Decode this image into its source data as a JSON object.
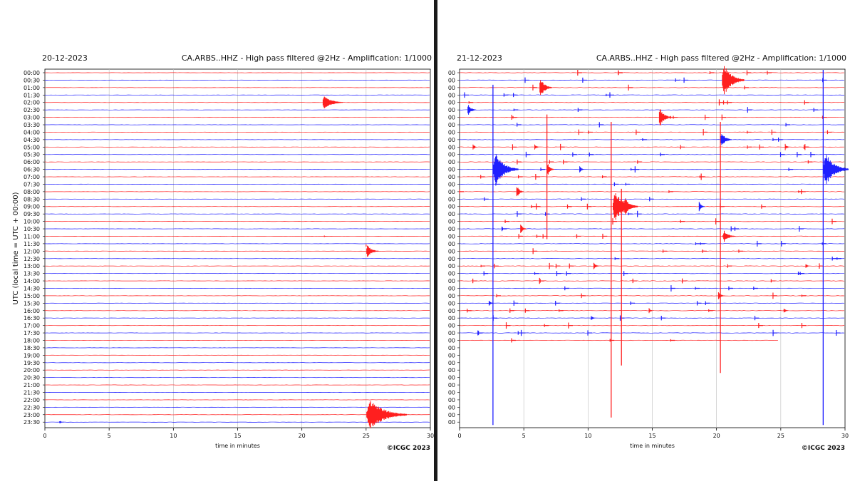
{
  "divider_color": "#1a1a1a",
  "trace_colors": {
    "red": "#ff1f1f",
    "blue": "#1f1fff"
  },
  "chart_data": [
    {
      "type": "helicorder",
      "date": "20-12-2023",
      "title": "CA.ARBS..HHZ - High pass filtered @2Hz - Amplification: 1/1000",
      "xlabel": "time in minutes",
      "ylabel": "UTC (local time = UTC + 00:00)",
      "xlim": [
        0,
        30
      ],
      "x_ticks": [
        "0",
        "5",
        "10",
        "15",
        "20",
        "25",
        "30"
      ],
      "row_labels": [
        "00:00",
        "00:30",
        "01:00",
        "01:30",
        "02:00",
        "02:30",
        "03:00",
        "03:30",
        "04:00",
        "04:30",
        "05:00",
        "05:30",
        "06:00",
        "06:30",
        "07:00",
        "07:30",
        "08:00",
        "08:30",
        "09:00",
        "09:30",
        "10:00",
        "10:30",
        "11:00",
        "11:30",
        "12:00",
        "12:30",
        "13:00",
        "13:30",
        "14:00",
        "14:30",
        "15:00",
        "15:30",
        "16:00",
        "16:30",
        "17:00",
        "17:30",
        "18:00",
        "18:30",
        "19:00",
        "19:30",
        "20:00",
        "20:30",
        "21:00",
        "21:30",
        "22:00",
        "22:30",
        "23:00",
        "23:30"
      ],
      "credit": "©ICGC 2023",
      "events": [
        {
          "row": 4,
          "minute": 21.6,
          "amplitude": 1.1,
          "duration": 1.6,
          "color": "red"
        },
        {
          "row": 24,
          "minute": 25.0,
          "amplitude": 0.9,
          "duration": 1.0,
          "color": "red",
          "line_down": 23
        },
        {
          "row": 46,
          "minute": 25.0,
          "amplitude": 2.2,
          "duration": 3.2,
          "color": "red"
        },
        {
          "row": 47,
          "minute": 1.1,
          "amplitude": 0.2,
          "duration": 0.6,
          "color": "blue"
        },
        {
          "row": 22,
          "minute": 21.7,
          "amplitude": 0.12,
          "duration": 0.4,
          "color": "red"
        }
      ]
    },
    {
      "type": "helicorder",
      "date": "21-12-2023",
      "title": "CA.ARBS..HHZ - High pass filtered @2Hz - Amplification: 1/1000",
      "xlabel": "time in minutes",
      "xlim": [
        0,
        30
      ],
      "x_ticks": [
        "0",
        "5",
        "10",
        "15",
        "20",
        "25",
        "30"
      ],
      "row_labels": [
        "00",
        "00",
        "00",
        "00",
        "00",
        "00",
        "00",
        "00",
        "00",
        "00",
        "00",
        "00",
        "00",
        "00",
        "00",
        "00",
        "00",
        "00",
        "00",
        "00",
        "00",
        "00",
        "00",
        "00",
        "00",
        "00",
        "00",
        "00",
        "00",
        "00",
        "00",
        "00",
        "00",
        "00",
        "00",
        "00",
        "00",
        "00",
        "00",
        "00",
        "00",
        "00",
        "00",
        "00",
        "00",
        "00",
        "00",
        "00",
        "00",
        "00",
        "00",
        "00"
      ],
      "credit": "©ICGC 2023",
      "data_ends": {
        "row": 36,
        "minute": 24.8
      },
      "events": [
        {
          "row": 2,
          "minute": 6.2,
          "amplitude": 1.4,
          "duration": 1.0,
          "color": "red"
        },
        {
          "row": 1,
          "minute": 20.4,
          "amplitude": 2.3,
          "duration": 1.8,
          "color": "red"
        },
        {
          "row": 6,
          "minute": 15.5,
          "amplitude": 1.4,
          "duration": 1.0,
          "color": "red"
        },
        {
          "row": 5,
          "minute": 0.6,
          "amplitude": 0.8,
          "duration": 0.7,
          "color": "blue"
        },
        {
          "row": 9,
          "minute": 20.3,
          "amplitude": 1.1,
          "duration": 0.9,
          "color": "blue"
        },
        {
          "row": 10,
          "minute": 1.0,
          "amplitude": 0.5,
          "duration": 0.4,
          "color": "red"
        },
        {
          "row": 10,
          "minute": 5.8,
          "amplitude": 0.5,
          "duration": 0.4,
          "color": "red"
        },
        {
          "row": 10,
          "minute": 25.3,
          "amplitude": 0.5,
          "duration": 0.4,
          "color": "red"
        },
        {
          "row": 13,
          "minute": 2.6,
          "amplitude": 2.4,
          "duration": 2.0,
          "color": "blue"
        },
        {
          "row": 13,
          "minute": 28.3,
          "amplitude": 2.4,
          "duration": 2.0,
          "color": "blue"
        },
        {
          "row": 13,
          "minute": 6.8,
          "amplitude": 0.9,
          "duration": 0.6,
          "color": "red"
        },
        {
          "row": 13,
          "minute": 9.3,
          "amplitude": 0.6,
          "duration": 0.4,
          "color": "blue"
        },
        {
          "row": 16,
          "minute": 4.4,
          "amplitude": 0.9,
          "duration": 0.6,
          "color": "red"
        },
        {
          "row": 18,
          "minute": 11.9,
          "amplitude": 2.2,
          "duration": 2.0,
          "color": "red"
        },
        {
          "row": 18,
          "minute": 12.8,
          "amplitude": 1.4,
          "duration": 1.0,
          "color": "red"
        },
        {
          "row": 18,
          "minute": 18.6,
          "amplitude": 0.7,
          "duration": 0.5,
          "color": "blue"
        },
        {
          "row": 21,
          "minute": 4.7,
          "amplitude": 0.8,
          "duration": 0.5,
          "color": "red"
        },
        {
          "row": 22,
          "minute": 20.5,
          "amplitude": 0.8,
          "duration": 1.0,
          "color": "red"
        },
        {
          "row": 26,
          "minute": 10.4,
          "amplitude": 0.5,
          "duration": 0.5,
          "color": "red"
        },
        {
          "row": 26,
          "minute": 26.9,
          "amplitude": 0.4,
          "duration": 0.4,
          "color": "red"
        },
        {
          "row": 30,
          "minute": 20.1,
          "amplitude": 0.5,
          "duration": 0.6,
          "color": "red"
        },
        {
          "row": 31,
          "minute": 2.3,
          "amplitude": 0.3,
          "duration": 0.4,
          "color": "blue"
        },
        {
          "row": 32,
          "minute": 14.7,
          "amplitude": 0.4,
          "duration": 0.4,
          "color": "red"
        },
        {
          "row": 33,
          "minute": 10.2,
          "amplitude": 0.5,
          "duration": 0.4,
          "color": "blue"
        },
        {
          "row": 32,
          "minute": 25.2,
          "amplitude": 0.4,
          "duration": 0.4,
          "color": "red"
        }
      ],
      "persistent_lines": [
        {
          "minute": 2.6,
          "from_row": 2,
          "to_row": 47,
          "color": "blue"
        },
        {
          "minute": 28.3,
          "from_row": 0,
          "to_row": 47,
          "color": "blue"
        },
        {
          "minute": 11.8,
          "from_row": 7,
          "to_row": 46,
          "color": "red"
        },
        {
          "minute": 12.6,
          "from_row": 16,
          "to_row": 39,
          "color": "red"
        },
        {
          "minute": 20.3,
          "from_row": 7,
          "to_row": 40,
          "color": "red"
        },
        {
          "minute": 6.8,
          "from_row": 6,
          "to_row": 22,
          "color": "red"
        }
      ]
    }
  ]
}
